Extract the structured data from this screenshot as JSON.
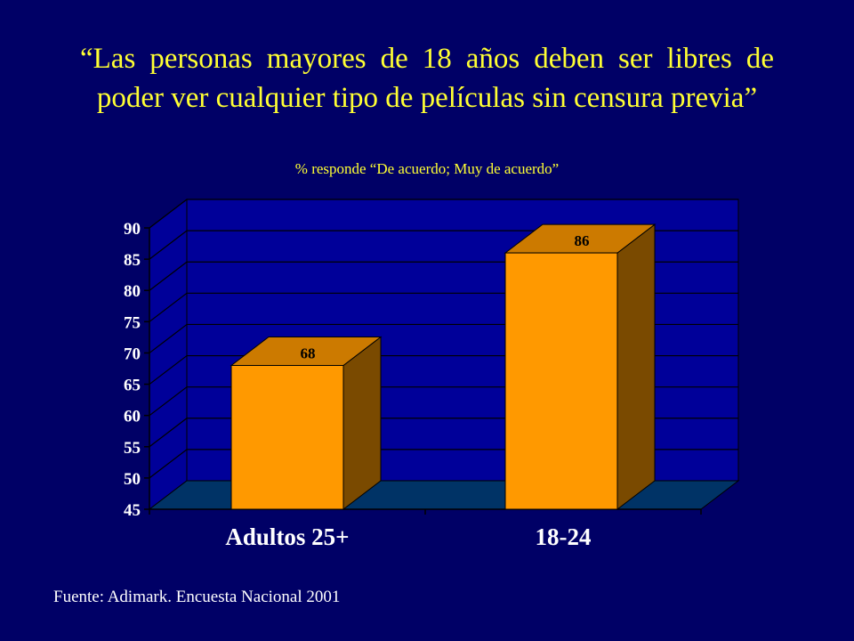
{
  "chart_data": {
    "type": "bar",
    "title": "“Las personas mayores de 18 años deben ser libres de poder ver cualquier tipo de películas sin censura previa”",
    "subtitle": "% responde “De acuerdo; Muy de acuerdo”",
    "categories": [
      "Adultos 25+",
      "18-24"
    ],
    "values": [
      68,
      86
    ],
    "data_labels": [
      "68",
      "86"
    ],
    "ylim": [
      45,
      90
    ],
    "yticks": [
      45,
      50,
      55,
      60,
      65,
      70,
      75,
      80,
      85,
      90
    ],
    "grid": true,
    "legend": "none",
    "style": "3d-column"
  },
  "colors": {
    "background": "#000066",
    "plot_wall": "#000099",
    "floor": "#003366",
    "bar_front": "#FF9900",
    "bar_top": "#CC7A00",
    "bar_side": "#7A4A00",
    "title": "#FFFF33",
    "text": "#FFFFFF"
  },
  "source": "Fuente: Adimark. Encuesta Nacional 2001"
}
